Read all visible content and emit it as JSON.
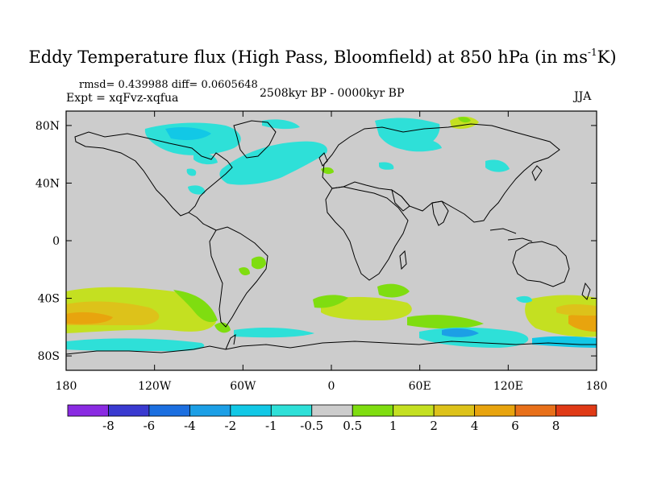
{
  "title": {
    "main": "Eddy Temperature flux (High Pass, Bloomfield) at 850 hPa (in ms",
    "sup": "-1",
    "end": "K)"
  },
  "stats": "rmsd= 0.439988 diff= 0.0605648",
  "experiment": "Expt = xqFvz-xqfua",
  "period": "2508kyr BP - 0000kyr BP",
  "season": "JJA",
  "axes": {
    "lat_labels": [
      "80N",
      "40N",
      "0",
      "40S",
      "80S"
    ],
    "lat_values": [
      80,
      40,
      0,
      -40,
      -80
    ],
    "lon_labels": [
      "180",
      "120W",
      "60W",
      "0",
      "60E",
      "120E",
      "180"
    ],
    "lon_values": [
      -180,
      -120,
      -60,
      0,
      60,
      120,
      180
    ]
  },
  "colorbar": {
    "labels": [
      "-8",
      "-6",
      "-4",
      "-2",
      "-1",
      "-0.5",
      "0.5",
      "1",
      "2",
      "4",
      "6",
      "8"
    ],
    "colors": [
      "#8a2be2",
      "#3a3ad0",
      "#1c6fe0",
      "#1c9fe6",
      "#12c8e6",
      "#2ee0d8",
      "#cccccc",
      "#7fdd10",
      "#c4e021",
      "#ddc21a",
      "#e8a40e",
      "#e8701a",
      "#e03a16"
    ]
  },
  "colors": {
    "ocean_background": "#cccccc",
    "coastline": "#000000"
  }
}
